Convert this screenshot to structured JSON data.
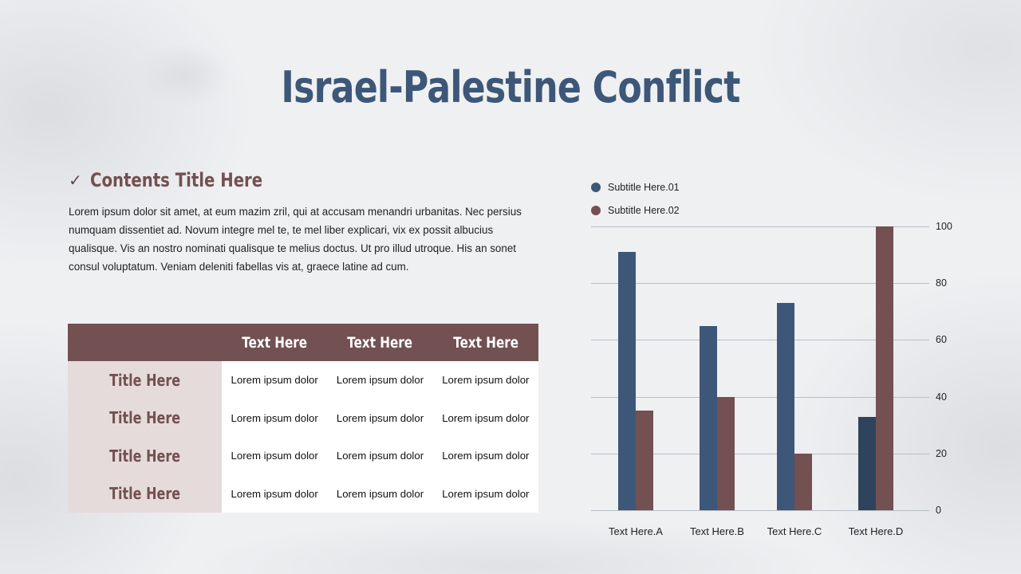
{
  "slide": {
    "title": "Israel-Palestine Conflict",
    "contents": {
      "check_icon": "✓",
      "title": "Contents Title Here",
      "body": "Lorem ipsum dolor sit amet, at eum mazim zril, qui at accusam menandri urbanitas.  Nec persius numquam dissentiet ad. Novum integre mel te, te mel liber explicari, vix ex possit albucius qualisque. Vis an nostro nominati qualisque te melius doctus. Ut pro illud utroque. His an sonet consul voluptatum. Veniam deleniti fabellas vis at, graece latine ad cum."
    },
    "table": {
      "headers": [
        "",
        "Text Here",
        "Text Here",
        "Text Here"
      ],
      "rows": [
        {
          "title": "Title Here",
          "cells": [
            "Lorem ipsum dolor",
            "Lorem ipsum dolor",
            "Lorem ipsum dolor"
          ]
        },
        {
          "title": "Title Here",
          "cells": [
            "Lorem ipsum dolor",
            "Lorem ipsum dolor",
            "Lorem ipsum dolor"
          ]
        },
        {
          "title": "Title Here",
          "cells": [
            "Lorem ipsum dolor",
            "Lorem ipsum dolor",
            "Lorem ipsum dolor"
          ]
        },
        {
          "title": "Title Here",
          "cells": [
            "Lorem ipsum dolor",
            "Lorem ipsum dolor",
            "Lorem ipsum dolor"
          ]
        }
      ]
    },
    "colors": {
      "title_blue": "#3d5778",
      "brown": "#735051",
      "row_title_bg": "#e5dbdb",
      "series1": "#3d5778",
      "series1_dark": "#2f445c",
      "series2": "#735051"
    }
  },
  "chart_data": {
    "type": "bar",
    "title": "",
    "xlabel": "",
    "ylabel": "",
    "categories": [
      "Text Here.A",
      "Text Here.B",
      "Text Here.C",
      "Text Here.D"
    ],
    "series": [
      {
        "name": "Subtitle Here.01",
        "color": "#3d5778",
        "values": [
          91,
          65,
          73,
          33
        ]
      },
      {
        "name": "Subtitle Here.02",
        "color": "#735051",
        "values": [
          35,
          40,
          20,
          100
        ]
      }
    ],
    "ylim": [
      0,
      100
    ],
    "yticks": [
      0,
      20,
      40,
      60,
      80,
      100
    ],
    "yaxis_position": "right",
    "grid": true,
    "legend_position": "top-left"
  }
}
